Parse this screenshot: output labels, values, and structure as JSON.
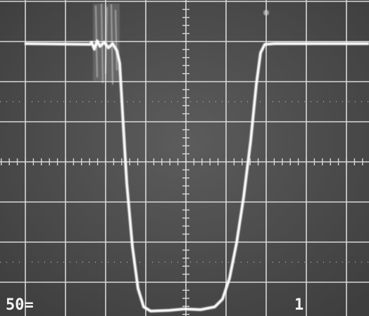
{
  "readout": {
    "left": "50=",
    "right": "1"
  }
}
